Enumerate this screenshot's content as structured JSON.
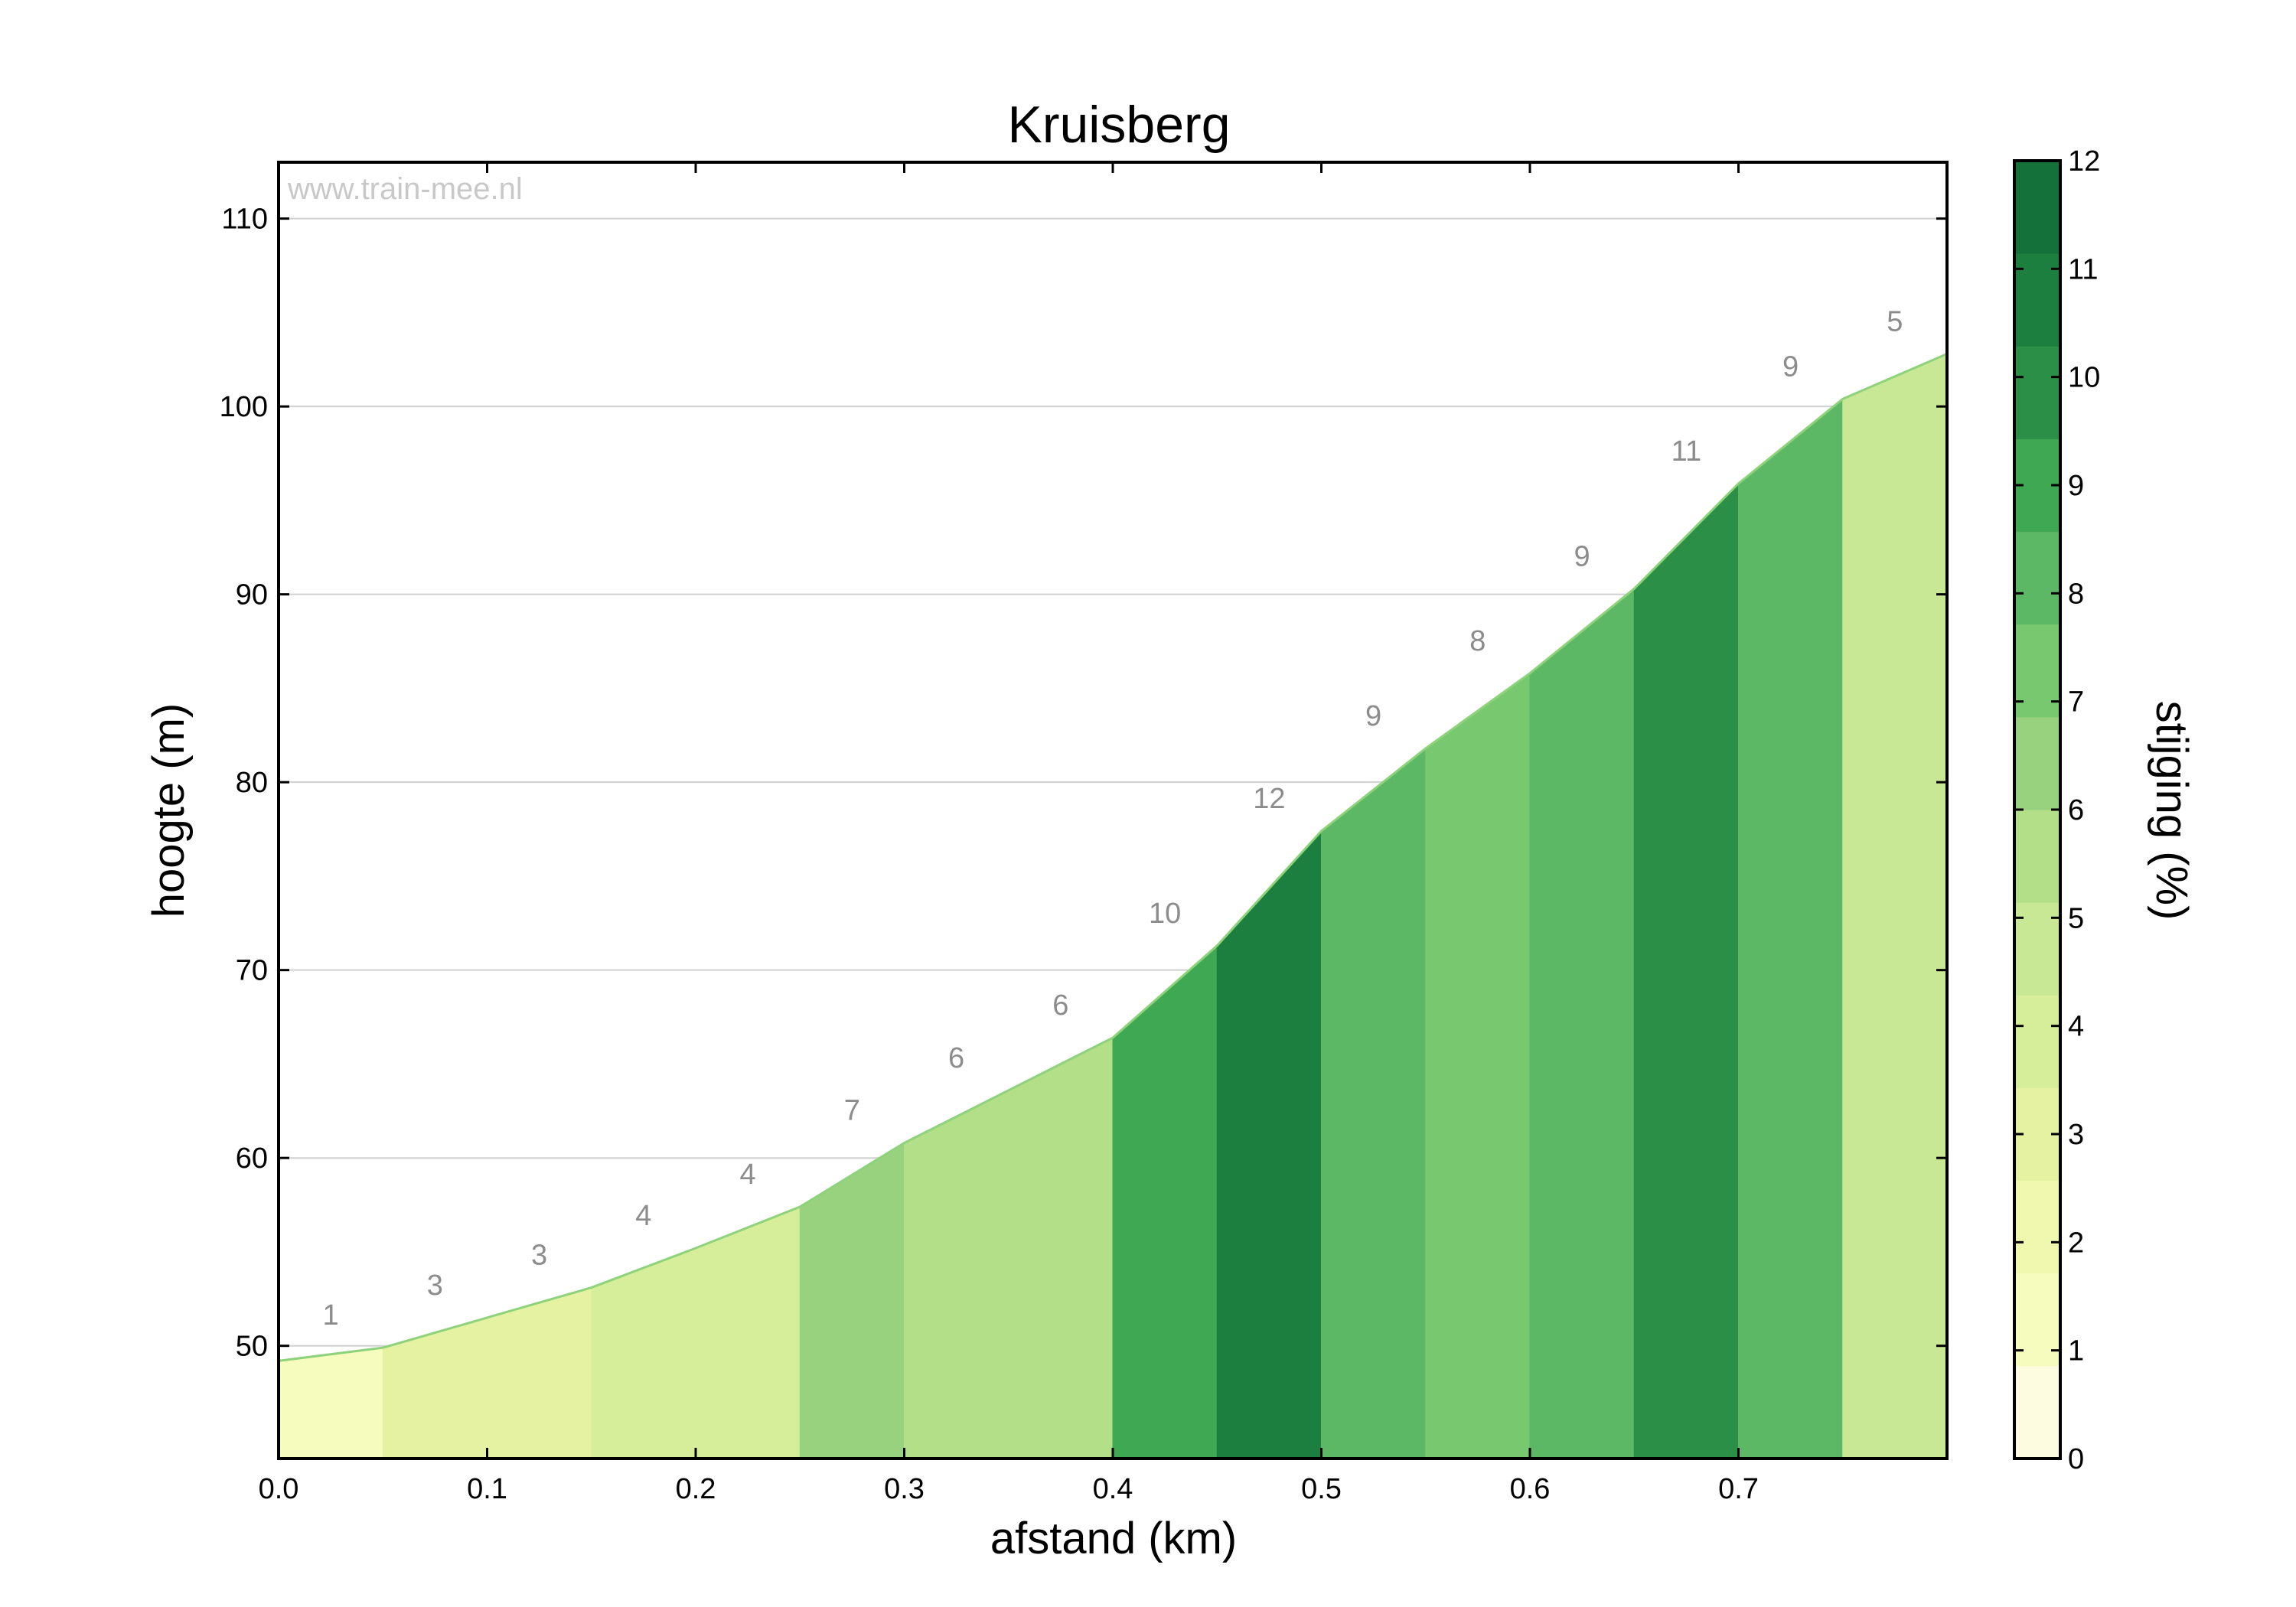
{
  "chart_data": {
    "type": "area",
    "title": "Kruisberg",
    "watermark": "www.train-mee.nl",
    "xlabel": "afstand (km)",
    "ylabel": "hoogte (m)",
    "xlim": [
      0.0,
      0.8
    ],
    "ylim": [
      44,
      113
    ],
    "xticks": [
      "0.0",
      "0.1",
      "0.2",
      "0.3",
      "0.4",
      "0.5",
      "0.6",
      "0.7"
    ],
    "yticks": [
      "50",
      "60",
      "70",
      "80",
      "90",
      "100",
      "110"
    ],
    "grid": "horizontal",
    "profile": {
      "x": [
        0.0,
        0.05,
        0.1,
        0.15,
        0.2,
        0.25,
        0.3,
        0.35,
        0.4,
        0.45,
        0.5,
        0.55,
        0.6,
        0.65,
        0.7,
        0.75,
        0.8
      ],
      "elevation": [
        49.2,
        49.9,
        51.5,
        53.1,
        55.2,
        57.4,
        60.8,
        63.6,
        66.4,
        71.3,
        77.4,
        81.8,
        85.8,
        90.3,
        95.9,
        100.4,
        102.8
      ]
    },
    "segment_grades": [
      "1",
      "3",
      "3",
      "4",
      "4",
      "7",
      "6",
      "6",
      "10",
      "12",
      "9",
      "8",
      "9",
      "11",
      "9",
      "5"
    ],
    "colorbar": {
      "label": "stijging (%)",
      "range": [
        0,
        12
      ],
      "ticks": [
        "0",
        "1",
        "2",
        "3",
        "4",
        "5",
        "6",
        "7",
        "8",
        "9",
        "10",
        "11",
        "12"
      ],
      "colors": [
        "#fdfce0",
        "#f6fcbe",
        "#f0f8b0",
        "#e4f2a2",
        "#d6ee9a",
        "#c8e895",
        "#b2df88",
        "#98d27e",
        "#78c870",
        "#5db865",
        "#3ea853",
        "#2b8f47",
        "#1c7f3f",
        "#15713a"
      ]
    }
  }
}
